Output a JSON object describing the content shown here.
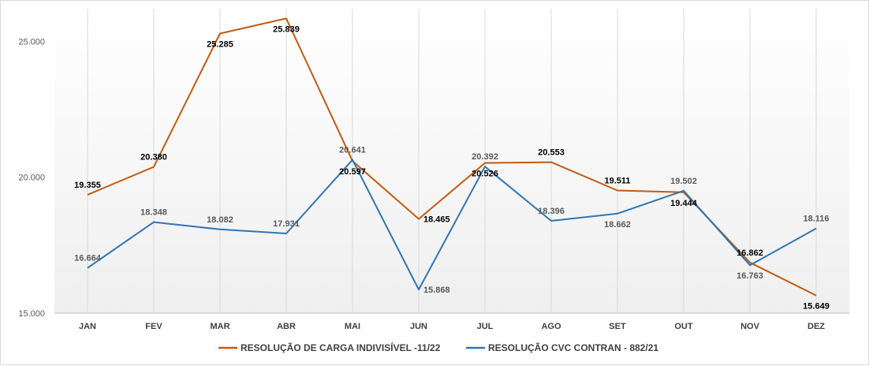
{
  "chart_data": {
    "type": "line",
    "categories": [
      "JAN",
      "FEV",
      "MAR",
      "ABR",
      "MAI",
      "JUN",
      "JUL",
      "AGO",
      "SET",
      "OUT",
      "NOV",
      "DEZ"
    ],
    "series": [
      {
        "name": "RESOLUÇÃO DE CARGA INDIVISÍVEL -11/22",
        "color": "#c55a11",
        "values": [
          19355,
          20380,
          25285,
          25839,
          20597,
          18465,
          20526,
          20553,
          19511,
          19444,
          16862,
          15649
        ],
        "labels": [
          "19.355",
          "20.380",
          "25.285",
          "25.839",
          "20.597",
          "18.465",
          "20.526",
          "20.553",
          "19.511",
          "19.444",
          "16.862",
          "15.649"
        ]
      },
      {
        "name": "RESOLUÇÃO CVC CONTRAN - 882/21",
        "color": "#2e75b6",
        "values": [
          16664,
          18348,
          18082,
          17931,
          20641,
          15868,
          20392,
          18396,
          18662,
          19502,
          16763,
          18116
        ],
        "labels": [
          "16.664",
          "18.348",
          "18.082",
          "17.931",
          "20.641",
          "15.868",
          "20.392",
          "18.396",
          "18.662",
          "19.502",
          "16.763",
          "18.116"
        ]
      }
    ],
    "y_ticks": [
      {
        "value": 15000,
        "label": "15.000"
      },
      {
        "value": 20000,
        "label": "20.000"
      },
      {
        "value": 25000,
        "label": "25.000"
      }
    ],
    "ylim": [
      15000,
      26200
    ],
    "grid": "vertical lines at categories",
    "legend_position": "bottom"
  }
}
